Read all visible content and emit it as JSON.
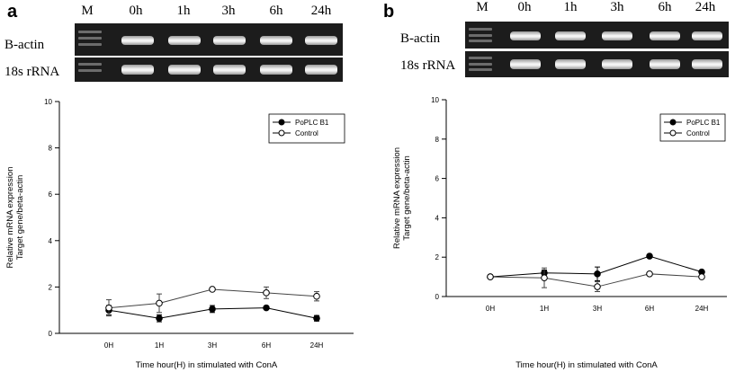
{
  "panels": [
    {
      "letter": "a",
      "gel": {
        "lanes": [
          "M",
          "0h",
          "1h",
          "3h",
          "6h",
          "24h"
        ],
        "rows": [
          "B-actin",
          "18s rRNA"
        ]
      }
    },
    {
      "letter": "b",
      "gel": {
        "lanes": [
          "M",
          "0h",
          "1h",
          "3h",
          "6h",
          "24h"
        ],
        "rows": [
          "B-actin",
          "18s rRNA"
        ]
      }
    }
  ],
  "chart_data": [
    {
      "type": "line",
      "panel": "a",
      "categories": [
        "0H",
        "1H",
        "3H",
        "6H",
        "24H"
      ],
      "series": [
        {
          "name": "PoPLC B1",
          "marker": "filled-circle",
          "values": [
            1.0,
            0.65,
            1.05,
            1.1,
            0.65
          ],
          "errors": [
            0.2,
            0.15,
            0.15,
            0.05,
            0.12
          ]
        },
        {
          "name": "Control",
          "marker": "open-circle",
          "values": [
            1.1,
            1.3,
            1.9,
            1.75,
            1.6
          ],
          "errors": [
            0.35,
            0.4,
            0.07,
            0.25,
            0.2
          ]
        }
      ],
      "ylabel": "Relative mRNA expression\nTarget gene/beta-actin",
      "xlabel": "Time hour(H) in stimulated with ConA",
      "ylim": [
        0,
        10
      ],
      "yticks": [
        0,
        2,
        4,
        6,
        8,
        10
      ],
      "legend": "top-right",
      "grid": false
    },
    {
      "type": "line",
      "panel": "b",
      "categories": [
        "0H",
        "1H",
        "3H",
        "6H",
        "24H"
      ],
      "series": [
        {
          "name": "PoPLC B1",
          "marker": "filled-circle",
          "values": [
            1.0,
            1.2,
            1.15,
            2.05,
            1.25
          ],
          "errors": [
            0.05,
            0.15,
            0.35,
            0.08,
            0.05
          ]
        },
        {
          "name": "Control",
          "marker": "open-circle",
          "values": [
            1.0,
            0.95,
            0.5,
            1.15,
            1.0
          ],
          "errors": [
            0.05,
            0.5,
            0.25,
            0.05,
            0.05
          ]
        }
      ],
      "ylabel": "Relative mRNA expression\nTarget gene/beta-actin",
      "xlabel": "Time hour(H) in stimulated with ConA",
      "ylim": [
        0,
        10
      ],
      "yticks": [
        0,
        2,
        4,
        6,
        8,
        10
      ],
      "legend": "top-right",
      "grid": false
    }
  ]
}
